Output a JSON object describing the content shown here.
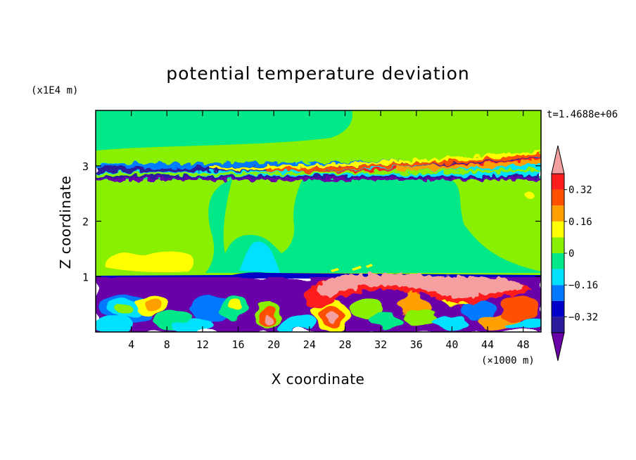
{
  "chart_data": {
    "type": "heatmap",
    "title": "potential temperature deviation",
    "xlabel": "X coordinate",
    "ylabel": "Z coordinate",
    "x_unit": "(×1000 m)",
    "y_unit": "(x1E4 m)",
    "time_label": "t=1.4688e+06",
    "xlim": [
      0,
      50
    ],
    "ylim": [
      0,
      4
    ],
    "x_ticks": [
      4,
      8,
      12,
      16,
      20,
      24,
      28,
      32,
      36,
      40,
      44,
      48
    ],
    "y_ticks": [
      1,
      2,
      3
    ],
    "colorbar": {
      "labels": [
        "0.32",
        "0.16",
        "0",
        "-0.16",
        "-0.32"
      ],
      "label_values": [
        0.32,
        0.16,
        0,
        -0.16,
        -0.32
      ],
      "levels": [
        -0.4,
        -0.32,
        -0.24,
        -0.16,
        -0.08,
        0,
        0.08,
        0.16,
        0.24,
        0.32,
        0.4
      ],
      "colors": [
        "#6a00a8",
        "#2a1a9c",
        "#0000c8",
        "#0078ff",
        "#00e0ff",
        "#00e888",
        "#88f000",
        "#ffff00",
        "#ffa000",
        "#ff5000",
        "#ff1e1e",
        "#f4a0a0"
      ],
      "extend": "both"
    },
    "regions": [
      {
        "name": "upper layer",
        "x": [
          0,
          50
        ],
        "z": [
          3.0,
          4.0
        ],
        "value": 0.04
      },
      {
        "name": "upper-left near-zero patch",
        "x": [
          0,
          22
        ],
        "z": [
          3.15,
          3.9
        ],
        "value": -0.02
      },
      {
        "name": "upper shear band",
        "x": [
          0,
          50
        ],
        "z": [
          2.75,
          3.1
        ],
        "value": "mixed"
      },
      {
        "name": "middle layer",
        "x": [
          0,
          50
        ],
        "z": [
          1.0,
          2.75
        ],
        "value": -0.02
      },
      {
        "name": "middle-left positive patch",
        "x": [
          0,
          12
        ],
        "z": [
          1.05,
          2.2
        ],
        "value": 0.04
      },
      {
        "name": "middle-right positive patch",
        "x": [
          40,
          50
        ],
        "z": [
          1.05,
          2.3
        ],
        "value": 0.04
      },
      {
        "name": "cyan plume",
        "x": [
          17,
          22
        ],
        "z": [
          1.05,
          1.65
        ],
        "value": -0.1
      },
      {
        "name": "yellow patch",
        "x": [
          1,
          11
        ],
        "z": [
          1.1,
          1.45
        ],
        "value": 0.12
      },
      {
        "name": "inversion line",
        "x": [
          0,
          50
        ],
        "z": [
          0.96,
          1.02
        ],
        "value": -0.34
      },
      {
        "name": "lower layer",
        "x": [
          0,
          50
        ],
        "z": [
          0,
          1.0
        ],
        "value": -0.36
      },
      {
        "name": "pink high anomaly",
        "x": [
          25,
          45
        ],
        "z": [
          0.5,
          1.15
        ],
        "value": 0.44
      }
    ]
  }
}
